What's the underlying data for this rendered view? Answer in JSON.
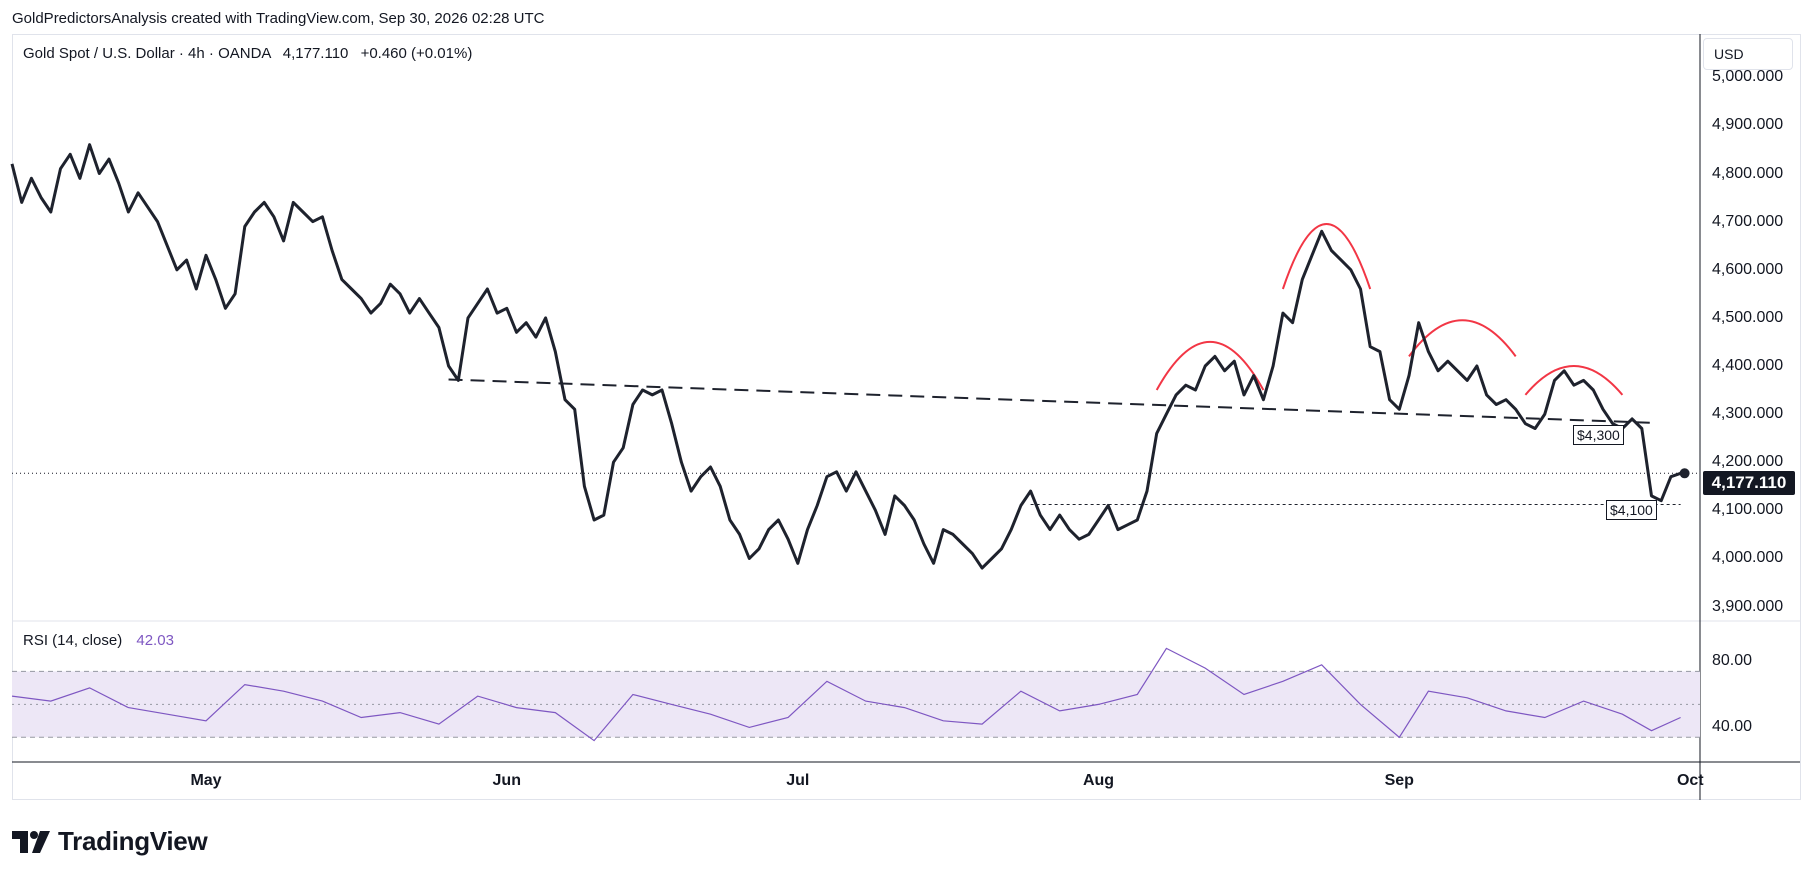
{
  "header": {
    "attribution": "GoldPredictorsAnalysis created with TradingView.com, Sep 30, 2026 02:28 UTC"
  },
  "legend": {
    "symbol": "Gold Spot / U.S. Dollar · 4h · OANDA",
    "last": "4,177.110",
    "change": "+0.460 (+0.01%)"
  },
  "currency_button": "USD",
  "rsi_legend": {
    "label": "RSI (14, close)",
    "value": "42.03"
  },
  "price_axis_labels": [
    "5,000.000",
    "4,900.000",
    "4,800.000",
    "4,700.000",
    "4,600.000",
    "4,500.000",
    "4,400.000",
    "4,300.000",
    "4,200.000",
    "4,100.000",
    "4,000.000",
    "3,900.000"
  ],
  "rsi_axis_labels": [
    "80.00",
    "40.00"
  ],
  "last_price_tag": "4,177.110",
  "annotations": {
    "level_4300": "$4,300",
    "level_4100": "$4,100"
  },
  "footer": {
    "brand": "TradingView"
  },
  "colors": {
    "price_line": "#1e222d",
    "arcs": "#f23645",
    "rsi_line": "#7e57c2",
    "rsi_band": "#ede7f6",
    "text": "#131722"
  },
  "chart_data": [
    {
      "type": "line",
      "title": "Gold Spot / U.S. Dollar · 4h · OANDA",
      "xlabel": "",
      "ylabel": "",
      "x_tick_labels": [
        "May",
        "Jun",
        "Jul",
        "Aug",
        "Sep",
        "Oct"
      ],
      "x_ticks": [
        "2026-05-01",
        "2026-06-01",
        "2026-07-01",
        "2026-08-01",
        "2026-09-01",
        "2026-10-01"
      ],
      "ylim": [
        3870,
        5090
      ],
      "grid": false,
      "series": [
        {
          "values": [
            [
              "2026-04-11",
              4820
            ],
            [
              "2026-04-12",
              4740
            ],
            [
              "2026-04-13",
              4790
            ],
            [
              "2026-04-14",
              4750
            ],
            [
              "2026-04-15",
              4720
            ],
            [
              "2026-04-16",
              4810
            ],
            [
              "2026-04-17",
              4840
            ],
            [
              "2026-04-18",
              4790
            ],
            [
              "2026-04-19",
              4860
            ],
            [
              "2026-04-20",
              4800
            ],
            [
              "2026-04-21",
              4830
            ],
            [
              "2026-04-22",
              4780
            ],
            [
              "2026-04-23",
              4720
            ],
            [
              "2026-04-24",
              4760
            ],
            [
              "2026-04-25",
              4730
            ],
            [
              "2026-04-26",
              4700
            ],
            [
              "2026-04-27",
              4650
            ],
            [
              "2026-04-28",
              4600
            ],
            [
              "2026-04-29",
              4620
            ],
            [
              "2026-04-30",
              4560
            ],
            [
              "2026-05-01",
              4630
            ],
            [
              "2026-05-02",
              4580
            ],
            [
              "2026-05-03",
              4520
            ],
            [
              "2026-05-04",
              4550
            ],
            [
              "2026-05-05",
              4690
            ],
            [
              "2026-05-06",
              4720
            ],
            [
              "2026-05-07",
              4740
            ],
            [
              "2026-05-08",
              4710
            ],
            [
              "2026-05-09",
              4660
            ],
            [
              "2026-05-10",
              4740
            ],
            [
              "2026-05-11",
              4720
            ],
            [
              "2026-05-12",
              4700
            ],
            [
              "2026-05-13",
              4710
            ],
            [
              "2026-05-14",
              4640
            ],
            [
              "2026-05-15",
              4580
            ],
            [
              "2026-05-16",
              4560
            ],
            [
              "2026-05-17",
              4540
            ],
            [
              "2026-05-18",
              4510
            ],
            [
              "2026-05-19",
              4530
            ],
            [
              "2026-05-20",
              4570
            ],
            [
              "2026-05-21",
              4550
            ],
            [
              "2026-05-22",
              4510
            ],
            [
              "2026-05-23",
              4540
            ],
            [
              "2026-05-24",
              4510
            ],
            [
              "2026-05-25",
              4480
            ],
            [
              "2026-05-26",
              4400
            ],
            [
              "2026-05-27",
              4370
            ],
            [
              "2026-05-28",
              4500
            ],
            [
              "2026-05-29",
              4530
            ],
            [
              "2026-05-30",
              4560
            ],
            [
              "2026-05-31",
              4510
            ],
            [
              "2026-06-01",
              4520
            ],
            [
              "2026-06-02",
              4470
            ],
            [
              "2026-06-03",
              4490
            ],
            [
              "2026-06-04",
              4460
            ],
            [
              "2026-06-05",
              4500
            ],
            [
              "2026-06-06",
              4430
            ],
            [
              "2026-06-07",
              4330
            ],
            [
              "2026-06-08",
              4310
            ],
            [
              "2026-06-09",
              4150
            ],
            [
              "2026-06-10",
              4080
            ],
            [
              "2026-06-11",
              4090
            ],
            [
              "2026-06-12",
              4200
            ],
            [
              "2026-06-13",
              4230
            ],
            [
              "2026-06-14",
              4320
            ],
            [
              "2026-06-15",
              4350
            ],
            [
              "2026-06-16",
              4340
            ],
            [
              "2026-06-17",
              4350
            ],
            [
              "2026-06-18",
              4280
            ],
            [
              "2026-06-19",
              4200
            ],
            [
              "2026-06-20",
              4140
            ],
            [
              "2026-06-21",
              4170
            ],
            [
              "2026-06-22",
              4190
            ],
            [
              "2026-06-23",
              4150
            ],
            [
              "2026-06-24",
              4080
            ],
            [
              "2026-06-25",
              4050
            ],
            [
              "2026-06-26",
              4000
            ],
            [
              "2026-06-27",
              4020
            ],
            [
              "2026-06-28",
              4060
            ],
            [
              "2026-06-29",
              4080
            ],
            [
              "2026-06-30",
              4040
            ],
            [
              "2026-07-01",
              3990
            ],
            [
              "2026-07-02",
              4060
            ],
            [
              "2026-07-03",
              4110
            ],
            [
              "2026-07-04",
              4170
            ],
            [
              "2026-07-05",
              4180
            ],
            [
              "2026-07-06",
              4140
            ],
            [
              "2026-07-07",
              4180
            ],
            [
              "2026-07-08",
              4140
            ],
            [
              "2026-07-09",
              4100
            ],
            [
              "2026-07-10",
              4050
            ],
            [
              "2026-07-11",
              4130
            ],
            [
              "2026-07-12",
              4110
            ],
            [
              "2026-07-13",
              4080
            ],
            [
              "2026-07-14",
              4030
            ],
            [
              "2026-07-15",
              3990
            ],
            [
              "2026-07-16",
              4060
            ],
            [
              "2026-07-17",
              4050
            ],
            [
              "2026-07-18",
              4030
            ],
            [
              "2026-07-19",
              4010
            ],
            [
              "2026-07-20",
              3980
            ],
            [
              "2026-07-21",
              4000
            ],
            [
              "2026-07-22",
              4020
            ],
            [
              "2026-07-23",
              4060
            ],
            [
              "2026-07-24",
              4110
            ],
            [
              "2026-07-25",
              4140
            ],
            [
              "2026-07-26",
              4090
            ],
            [
              "2026-07-27",
              4060
            ],
            [
              "2026-07-28",
              4090
            ],
            [
              "2026-07-29",
              4060
            ],
            [
              "2026-07-30",
              4040
            ],
            [
              "2026-07-31",
              4050
            ],
            [
              "2026-08-01",
              4080
            ],
            [
              "2026-08-02",
              4110
            ],
            [
              "2026-08-03",
              4060
            ],
            [
              "2026-08-04",
              4070
            ],
            [
              "2026-08-05",
              4080
            ],
            [
              "2026-08-06",
              4140
            ],
            [
              "2026-08-07",
              4260
            ],
            [
              "2026-08-08",
              4300
            ],
            [
              "2026-08-09",
              4340
            ],
            [
              "2026-08-10",
              4360
            ],
            [
              "2026-08-11",
              4350
            ],
            [
              "2026-08-12",
              4400
            ],
            [
              "2026-08-13",
              4420
            ],
            [
              "2026-08-14",
              4390
            ],
            [
              "2026-08-15",
              4410
            ],
            [
              "2026-08-16",
              4340
            ],
            [
              "2026-08-17",
              4380
            ],
            [
              "2026-08-18",
              4330
            ],
            [
              "2026-08-19",
              4400
            ],
            [
              "2026-08-20",
              4510
            ],
            [
              "2026-08-21",
              4490
            ],
            [
              "2026-08-22",
              4580
            ],
            [
              "2026-08-23",
              4630
            ],
            [
              "2026-08-24",
              4680
            ],
            [
              "2026-08-25",
              4640
            ],
            [
              "2026-08-26",
              4620
            ],
            [
              "2026-08-27",
              4600
            ],
            [
              "2026-08-28",
              4560
            ],
            [
              "2026-08-29",
              4440
            ],
            [
              "2026-08-30",
              4430
            ],
            [
              "2026-08-31",
              4330
            ],
            [
              "2026-09-01",
              4310
            ],
            [
              "2026-09-02",
              4380
            ],
            [
              "2026-09-03",
              4490
            ],
            [
              "2026-09-04",
              4430
            ],
            [
              "2026-09-05",
              4390
            ],
            [
              "2026-09-06",
              4410
            ],
            [
              "2026-09-07",
              4390
            ],
            [
              "2026-09-08",
              4370
            ],
            [
              "2026-09-09",
              4400
            ],
            [
              "2026-09-10",
              4340
            ],
            [
              "2026-09-11",
              4320
            ],
            [
              "2026-09-12",
              4330
            ],
            [
              "2026-09-13",
              4310
            ],
            [
              "2026-09-14",
              4280
            ],
            [
              "2026-09-15",
              4270
            ],
            [
              "2026-09-16",
              4300
            ],
            [
              "2026-09-17",
              4370
            ],
            [
              "2026-09-18",
              4390
            ],
            [
              "2026-09-19",
              4360
            ],
            [
              "2026-09-20",
              4370
            ],
            [
              "2026-09-21",
              4350
            ],
            [
              "2026-09-22",
              4310
            ],
            [
              "2026-09-23",
              4280
            ],
            [
              "2026-09-24",
              4270
            ],
            [
              "2026-09-25",
              4290
            ],
            [
              "2026-09-26",
              4270
            ],
            [
              "2026-09-27",
              4130
            ],
            [
              "2026-09-28",
              4120
            ],
            [
              "2026-09-29",
              4170
            ],
            [
              "2026-09-30",
              4177
            ]
          ]
        },
        {
          "type": "line",
          "title": "RSI (14, close)",
          "ylim": [
            15,
            100
          ],
          "bands": [
            30,
            50,
            70
          ],
          "values": [
            [
              "2026-04-11",
              55
            ],
            [
              "2026-04-15",
              52
            ],
            [
              "2026-04-19",
              60
            ],
            [
              "2026-04-23",
              48
            ],
            [
              "2026-04-27",
              44
            ],
            [
              "2026-05-01",
              40
            ],
            [
              "2026-05-05",
              62
            ],
            [
              "2026-05-09",
              58
            ],
            [
              "2026-05-13",
              52
            ],
            [
              "2026-05-17",
              42
            ],
            [
              "2026-05-21",
              45
            ],
            [
              "2026-05-25",
              38
            ],
            [
              "2026-05-29",
              55
            ],
            [
              "2026-06-02",
              48
            ],
            [
              "2026-06-06",
              45
            ],
            [
              "2026-06-10",
              28
            ],
            [
              "2026-06-14",
              56
            ],
            [
              "2026-06-18",
              50
            ],
            [
              "2026-06-22",
              44
            ],
            [
              "2026-06-26",
              36
            ],
            [
              "2026-06-30",
              42
            ],
            [
              "2026-07-04",
              64
            ],
            [
              "2026-07-08",
              52
            ],
            [
              "2026-07-12",
              48
            ],
            [
              "2026-07-16",
              40
            ],
            [
              "2026-07-20",
              38
            ],
            [
              "2026-07-24",
              58
            ],
            [
              "2026-07-28",
              46
            ],
            [
              "2026-08-01",
              50
            ],
            [
              "2026-08-05",
              56
            ],
            [
              "2026-08-08",
              84
            ],
            [
              "2026-08-12",
              72
            ],
            [
              "2026-08-16",
              56
            ],
            [
              "2026-08-20",
              64
            ],
            [
              "2026-08-24",
              74
            ],
            [
              "2026-08-28",
              50
            ],
            [
              "2026-09-01",
              30
            ],
            [
              "2026-09-04",
              58
            ],
            [
              "2026-09-08",
              54
            ],
            [
              "2026-09-12",
              46
            ],
            [
              "2026-09-16",
              42
            ],
            [
              "2026-09-20",
              52
            ],
            [
              "2026-09-24",
              44
            ],
            [
              "2026-09-27",
              34
            ],
            [
              "2026-09-30",
              42
            ]
          ]
        }
      ],
      "annotations": [
        "$4,300",
        "$4,100"
      ]
    }
  ]
}
